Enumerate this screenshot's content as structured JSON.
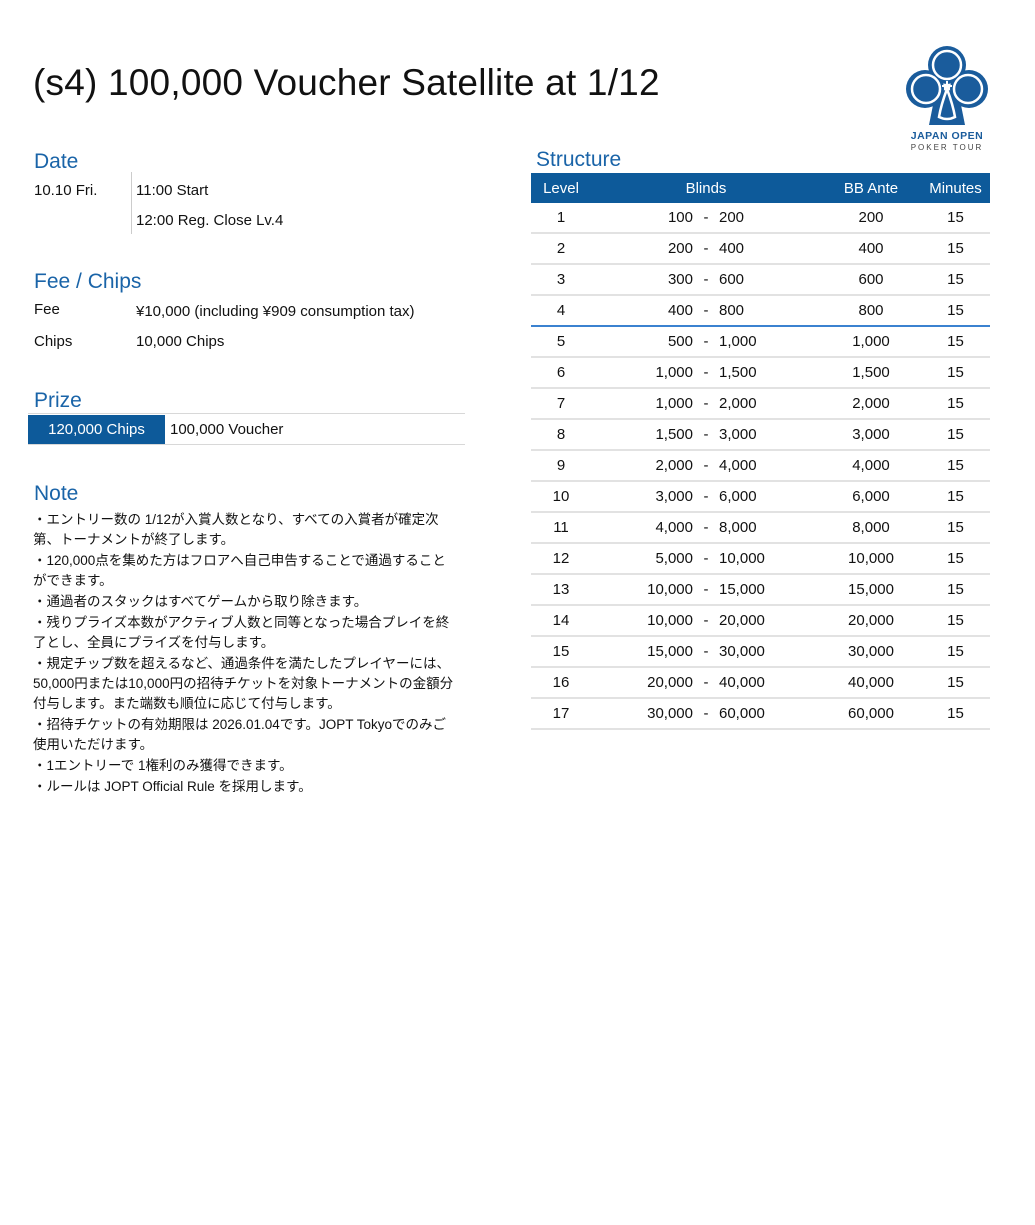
{
  "title": "(s4) 100,000 Voucher Satellite at 1/12",
  "logo": {
    "line1": "JAPAN OPEN",
    "line2": "POKER TOUR",
    "color": "#1a5c9c"
  },
  "date": {
    "heading": "Date",
    "day": "10.10 Fri.",
    "start": "11:00 Start",
    "reg_close": "12:00 Reg. Close Lv.4"
  },
  "fee_chips": {
    "heading": "Fee / Chips",
    "fee_label": "Fee",
    "fee_value": "¥10,000 (including ¥909 consumption tax)",
    "chips_label": "Chips",
    "chips_value": "10,000 Chips"
  },
  "prize": {
    "heading": "Prize",
    "chips": "120,000 Chips",
    "reward": "100,000 Voucher"
  },
  "note": {
    "heading": "Note",
    "items": [
      "・エントリー数の 1/12が入賞人数となり、すべての入賞者が確定次第、トーナメントが終了します。",
      "・120,000点を集めた方はフロアへ自己申告することで通過することができます。",
      "・通過者のスタックはすべてゲームから取り除きます。",
      "・残りプライズ本数がアクティブ人数と同等となった場合プレイを終了とし、全員にプライズを付与します。",
      "・規定チップ数を超えるなど、通過条件を満たしたプレイヤーには、50,000円または10,000円の招待チケットを対象トーナメントの金額分付与します。また端数も順位に応じて付与します。",
      "・招待チケットの有効期限は 2026.01.04です。JOPT Tokyoでのみご使用いただけます。",
      "・1エントリーで 1権利のみ獲得できます。",
      "・ルールは JOPT Official Rule を採用します。"
    ]
  },
  "structure": {
    "heading": "Structure",
    "accent_color": "#0d5a9a",
    "columns": [
      "Level",
      "Blinds",
      "BB Ante",
      "Minutes"
    ],
    "rows": [
      {
        "level": "1",
        "sb": "100",
        "bb": "200",
        "ante": "200",
        "minutes": "15"
      },
      {
        "level": "2",
        "sb": "200",
        "bb": "400",
        "ante": "400",
        "minutes": "15"
      },
      {
        "level": "3",
        "sb": "300",
        "bb": "600",
        "ante": "600",
        "minutes": "15"
      },
      {
        "level": "4",
        "sb": "400",
        "bb": "800",
        "ante": "800",
        "minutes": "15"
      },
      {
        "level": "5",
        "sb": "500",
        "bb": "1,000",
        "ante": "1,000",
        "minutes": "15"
      },
      {
        "level": "6",
        "sb": "1,000",
        "bb": "1,500",
        "ante": "1,500",
        "minutes": "15"
      },
      {
        "level": "7",
        "sb": "1,000",
        "bb": "2,000",
        "ante": "2,000",
        "minutes": "15"
      },
      {
        "level": "8",
        "sb": "1,500",
        "bb": "3,000",
        "ante": "3,000",
        "minutes": "15"
      },
      {
        "level": "9",
        "sb": "2,000",
        "bb": "4,000",
        "ante": "4,000",
        "minutes": "15"
      },
      {
        "level": "10",
        "sb": "3,000",
        "bb": "6,000",
        "ante": "6,000",
        "minutes": "15"
      },
      {
        "level": "11",
        "sb": "4,000",
        "bb": "8,000",
        "ante": "8,000",
        "minutes": "15"
      },
      {
        "level": "12",
        "sb": "5,000",
        "bb": "10,000",
        "ante": "10,000",
        "minutes": "15"
      },
      {
        "level": "13",
        "sb": "10,000",
        "bb": "15,000",
        "ante": "15,000",
        "minutes": "15"
      },
      {
        "level": "14",
        "sb": "10,000",
        "bb": "20,000",
        "ante": "20,000",
        "minutes": "15"
      },
      {
        "level": "15",
        "sb": "15,000",
        "bb": "30,000",
        "ante": "30,000",
        "minutes": "15"
      },
      {
        "level": "16",
        "sb": "20,000",
        "bb": "40,000",
        "ante": "40,000",
        "minutes": "15"
      },
      {
        "level": "17",
        "sb": "30,000",
        "bb": "60,000",
        "ante": "60,000",
        "minutes": "15"
      }
    ],
    "blind_separator": "-",
    "reg_close_after_level": "4"
  }
}
